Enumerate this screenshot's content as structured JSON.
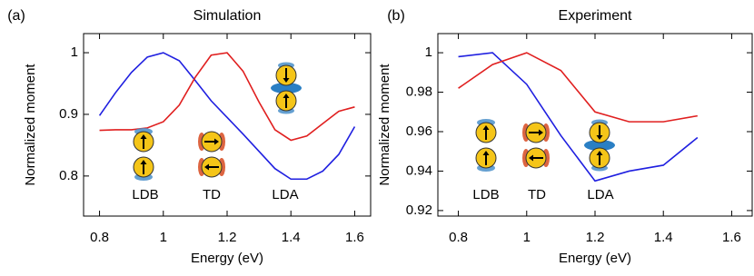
{
  "chart_data": [
    {
      "type": "line",
      "panel_label": "(a)",
      "title": "Simulation",
      "x_label": "Energy (eV)",
      "y_label": "Normalized moment",
      "x": [
        0.8,
        0.85,
        0.9,
        0.95,
        1.0,
        1.05,
        1.1,
        1.15,
        1.2,
        1.25,
        1.3,
        1.35,
        1.4,
        1.45,
        1.5,
        1.55,
        1.6
      ],
      "series": [
        {
          "color": "#1f1fe0",
          "values": [
            0.898,
            0.935,
            0.968,
            0.993,
            1.0,
            0.987,
            0.955,
            0.922,
            0.895,
            0.868,
            0.84,
            0.812,
            0.795,
            0.795,
            0.808,
            0.835,
            0.88
          ]
        },
        {
          "color": "#e01f1f",
          "values": [
            0.874,
            0.875,
            0.875,
            0.878,
            0.888,
            0.915,
            0.96,
            0.996,
            1.0,
            0.97,
            0.92,
            0.875,
            0.858,
            0.865,
            0.885,
            0.905,
            0.912
          ]
        }
      ],
      "xlim": [
        0.75,
        1.65
      ],
      "xticks": [
        0.8,
        1,
        1.2,
        1.4,
        1.6
      ],
      "ylim": [
        0.735,
        1.031
      ],
      "yticks": [
        0.8,
        0.9,
        1
      ],
      "annotations": [
        "LDB",
        "TD",
        "LDA"
      ]
    },
    {
      "type": "line",
      "panel_label": "(b)",
      "title": "Experiment",
      "x_label": "Energy (eV)",
      "y_label": "Normalized moment",
      "x": [
        0.8,
        0.9,
        1.0,
        1.1,
        1.2,
        1.3,
        1.4,
        1.5
      ],
      "series": [
        {
          "color": "#1f1fe0",
          "values": [
            0.998,
            1.0,
            0.984,
            0.958,
            0.935,
            0.94,
            0.943,
            0.957
          ]
        },
        {
          "color": "#e01f1f",
          "values": [
            0.982,
            0.994,
            1.0,
            0.991,
            0.97,
            0.965,
            0.965,
            0.968
          ]
        }
      ],
      "xlim": [
        0.74,
        1.66
      ],
      "xticks": [
        0.8,
        1,
        1.2,
        1.4,
        1.6
      ],
      "ylim": [
        0.9172,
        1.0097
      ],
      "yticks": [
        0.92,
        0.94,
        0.96,
        0.98,
        1
      ],
      "annotations": [
        "LDB",
        "TD",
        "LDA"
      ]
    }
  ]
}
